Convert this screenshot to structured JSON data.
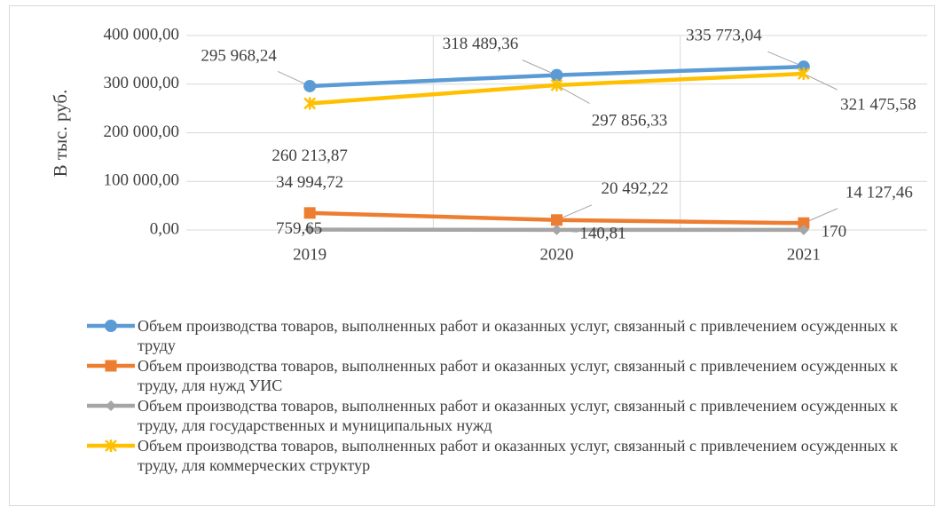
{
  "chart_data": {
    "type": "line",
    "ylabel": "В тыс. руб.",
    "categories": [
      "2019",
      "2020",
      "2021"
    ],
    "ylim": [
      0,
      400000
    ],
    "yticks": [
      {
        "value": 0,
        "label": "0,00"
      },
      {
        "value": 100000,
        "label": "100 000,00"
      },
      {
        "value": 200000,
        "label": "200 000,00"
      },
      {
        "value": 300000,
        "label": "300 000,00"
      },
      {
        "value": 400000,
        "label": "400 000,00"
      }
    ],
    "grid": true,
    "legend": "bottom",
    "series": [
      {
        "name": "Объем производства товаров, выполненных работ и оказанных услуг, связанный с привлечением осужденных к труду",
        "color": "#5b9bd5",
        "marker": "circle",
        "values": [
          295968.24,
          318489.36,
          335773.04
        ],
        "value_labels": [
          "295 968,24",
          "318 489,36",
          "335 773,04"
        ]
      },
      {
        "name": "Объем производства товаров, выполненных работ и оказанных услуг, связанный с привлечением осужденных к труду, для нужд УИС",
        "color": "#ed7d31",
        "marker": "square",
        "values": [
          34994.72,
          20492.22,
          14127.46
        ],
        "value_labels": [
          "34 994,72",
          "20 492,22",
          "14 127,46"
        ]
      },
      {
        "name": "Объем производства товаров, выполненных работ и оказанных услуг, связанный с привлечением осужденных к труду, для государственных и муниципальных нужд",
        "color": "#a5a5a5",
        "marker": "diamond",
        "values": [
          759.65,
          140.81,
          170
        ],
        "value_labels": [
          "759,65",
          "140,81",
          "170"
        ]
      },
      {
        "name": "Объем производства товаров, выполненных работ и оказанных услуг, связанный с привлечением осужденных к труду, для коммерческих структур",
        "color": "#ffc000",
        "marker": "star",
        "values": [
          260213.87,
          297856.33,
          321475.58
        ],
        "value_labels": [
          "260 213,87",
          "297 856,33",
          "321 475,58"
        ]
      }
    ]
  }
}
